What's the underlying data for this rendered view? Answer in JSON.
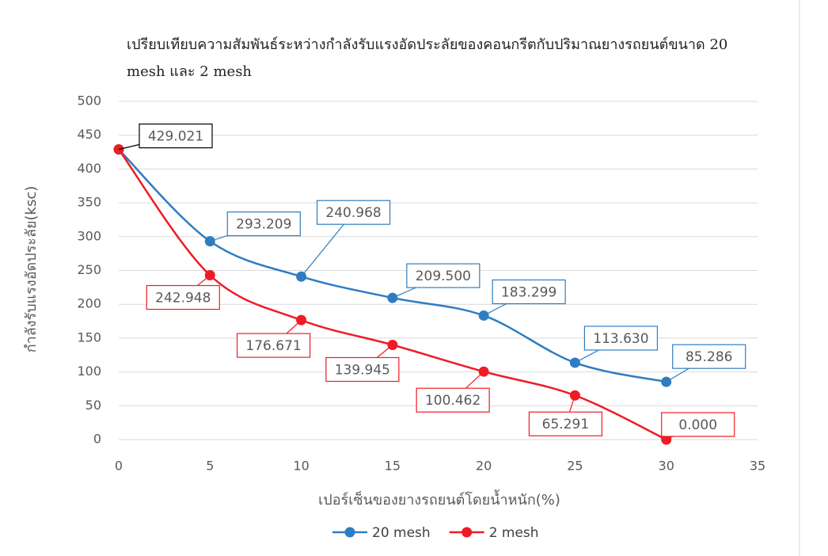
{
  "chart_data": {
    "type": "line",
    "title": "เปรียบเทียบความสัมพันธ์ระหว่างกำลังรับแรงอัดประลัยของคอนกรีตกับปริมาณยางรถยนต์ขนาด 20 mesh และ 2 mesh",
    "x_label": "เปอร์เซ็นของยางรถยนต์โดยน้ำหนัก(%)",
    "y_label": "กำลังรับแรงอัดประลัย(ksc)",
    "x": [
      0,
      5,
      10,
      15,
      20,
      25,
      30
    ],
    "series": [
      {
        "name": "20 mesh",
        "color": "#2e7dc1",
        "values": [
          429.021,
          293.209,
          240.968,
          209.5,
          183.299,
          113.63,
          85.286
        ],
        "value_labels": [
          "429.021",
          "293.209",
          "240.968",
          "209.500",
          "183.299",
          "113.630",
          "85.286"
        ]
      },
      {
        "name": "2 mesh",
        "color": "#ee1c25",
        "values": [
          429.021,
          242.948,
          176.671,
          139.945,
          100.462,
          65.291,
          0
        ],
        "value_labels": [
          null,
          "242.948",
          "176.671",
          "139.945",
          "100.462",
          "65.291",
          "0.000"
        ]
      }
    ],
    "xlim": [
      0,
      35
    ],
    "xticks": [
      0,
      5,
      10,
      15,
      20,
      25,
      30,
      35
    ],
    "ylim": [
      0,
      500
    ],
    "yticks": [
      0,
      50,
      100,
      150,
      200,
      250,
      300,
      350,
      400,
      450,
      500
    ],
    "grid": true,
    "legend": "bottom"
  }
}
